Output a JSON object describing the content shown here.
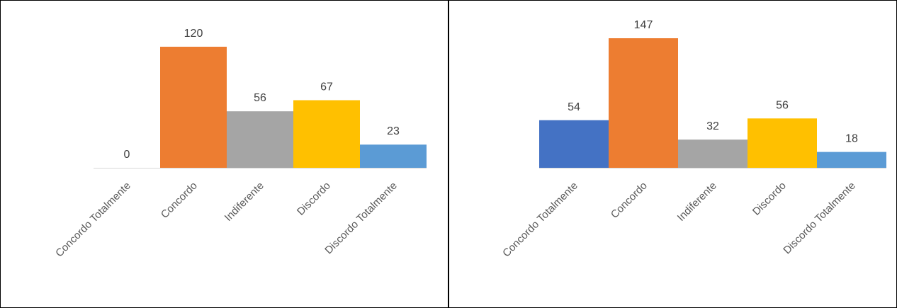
{
  "chart_data": [
    {
      "type": "bar",
      "title": "",
      "xlabel": "",
      "ylabel": "",
      "categories": [
        "Concordo Totalmente",
        "Concordo",
        "Indiferente",
        "Discordo",
        "Discordo Totalmente"
      ],
      "values": [
        0,
        120,
        56,
        67,
        23
      ],
      "colors": [
        "#4472C4",
        "#ED7D31",
        "#A5A5A5",
        "#FFC000",
        "#5B9BD5"
      ],
      "data_labels": true,
      "grid": false,
      "legend": "none",
      "ylim": [
        0,
        120
      ]
    },
    {
      "type": "bar",
      "title": "",
      "xlabel": "",
      "ylabel": "",
      "categories": [
        "Concordo Totalmente",
        "Concordo",
        "Indiferente",
        "Discordo",
        "Discordo Totalmente"
      ],
      "values": [
        54,
        147,
        32,
        56,
        18
      ],
      "colors": [
        "#4472C4",
        "#ED7D31",
        "#A5A5A5",
        "#FFC000",
        "#5B9BD5"
      ],
      "data_labels": true,
      "grid": false,
      "legend": "none",
      "ylim": [
        0,
        147
      ]
    }
  ]
}
